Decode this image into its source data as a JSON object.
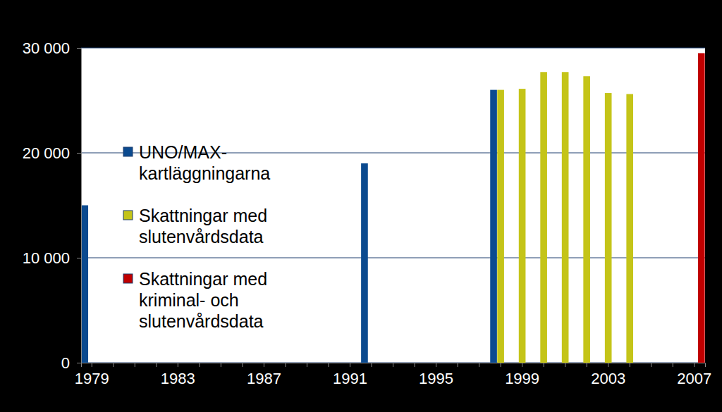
{
  "chart_data": {
    "type": "bar",
    "categories": [
      "1979",
      null,
      null,
      null,
      "1983",
      null,
      null,
      null,
      "1987",
      null,
      null,
      null,
      "1991",
      null,
      null,
      null,
      "1995",
      null,
      null,
      null,
      "1999",
      null,
      null,
      null,
      "2003",
      null,
      null,
      null,
      "2007"
    ],
    "series": [
      {
        "name": "UNO/MAX-kartläggningarna",
        "color": "#0b4a8f",
        "values": [
          15000,
          null,
          null,
          null,
          null,
          null,
          null,
          null,
          null,
          null,
          null,
          null,
          null,
          19000,
          null,
          null,
          null,
          null,
          null,
          26000,
          null,
          null,
          null,
          null,
          null,
          null,
          null,
          null,
          null
        ]
      },
      {
        "name": "Skattningar med slutenvårdsdata",
        "color": "#c4c418",
        "values": [
          null,
          null,
          null,
          null,
          null,
          null,
          null,
          null,
          null,
          null,
          null,
          null,
          null,
          null,
          null,
          null,
          null,
          null,
          null,
          26000,
          26100,
          27700,
          27700,
          27300,
          25700,
          25600,
          null,
          null,
          null
        ]
      },
      {
        "name": "Skattningar med kriminal- och slutenvårdsdata",
        "color": "#c00000",
        "values": [
          null,
          null,
          null,
          null,
          null,
          null,
          null,
          null,
          null,
          null,
          null,
          null,
          null,
          null,
          null,
          null,
          null,
          null,
          null,
          null,
          null,
          null,
          null,
          null,
          null,
          null,
          null,
          null,
          29500
        ]
      }
    ],
    "ylim": [
      0,
      30000
    ],
    "yticks": [
      0,
      {
        "value": 10000,
        "label": "10 000"
      },
      {
        "value": 20000,
        "label": "20 000"
      },
      {
        "value": 30000,
        "label": "30 000"
      }
    ],
    "grid": true,
    "legend": "left"
  }
}
